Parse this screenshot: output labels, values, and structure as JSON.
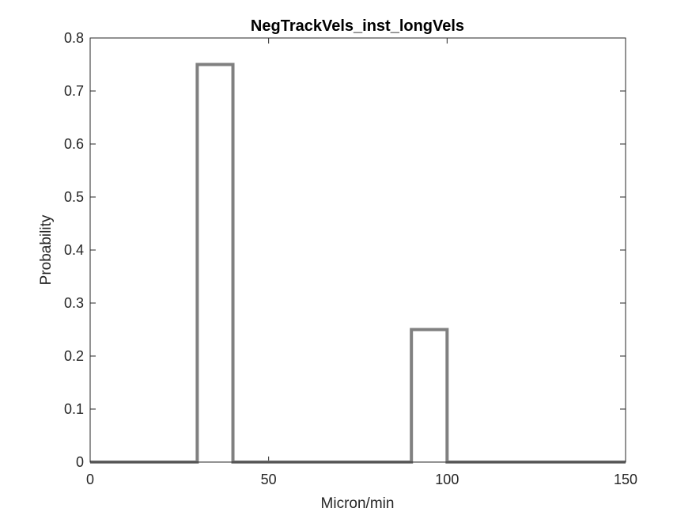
{
  "chart_data": {
    "type": "line",
    "title": "NegTrackVels_inst_longVels",
    "xlabel": "Micron/min",
    "ylabel": "Probability",
    "xlim": [
      0,
      150
    ],
    "ylim": [
      0,
      0.8
    ],
    "xticks": [
      0,
      50,
      100,
      150
    ],
    "yticks": [
      0,
      0.1,
      0.2,
      0.3,
      0.4,
      0.5,
      0.6,
      0.7,
      0.8
    ],
    "grid": false,
    "legend": "none",
    "series": [
      {
        "color": "#808080",
        "x": [
          0,
          30,
          30,
          40,
          40,
          90,
          90,
          100,
          100,
          150
        ],
        "y": [
          0,
          0,
          0.75,
          0.75,
          0,
          0,
          0.25,
          0.25,
          0,
          0
        ]
      }
    ]
  }
}
